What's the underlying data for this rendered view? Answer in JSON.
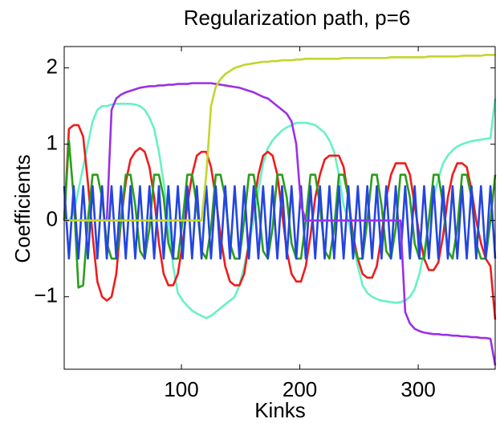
{
  "chart_data": {
    "type": "line",
    "title": "Regularization path, p=6",
    "x_label": "Kinks",
    "y_label": "Coefficients",
    "xlim": [
      1,
      365
    ],
    "xticks": [
      100,
      200,
      300
    ],
    "ylim": [
      -1.95,
      2.28
    ],
    "yticks": [
      {
        "value": -1,
        "label": "−1"
      },
      0,
      1,
      2
    ],
    "x": [
      1,
      5,
      9,
      13,
      17,
      21,
      25,
      29,
      33,
      37,
      41,
      45,
      49,
      53,
      57,
      61,
      65,
      69,
      73,
      77,
      81,
      85,
      89,
      93,
      97,
      101,
      105,
      109,
      113,
      117,
      121,
      125,
      129,
      133,
      137,
      141,
      145,
      149,
      153,
      157,
      161,
      165,
      169,
      173,
      177,
      181,
      185,
      189,
      193,
      197,
      201,
      205,
      209,
      213,
      217,
      221,
      225,
      229,
      233,
      237,
      241,
      245,
      249,
      253,
      257,
      261,
      265,
      269,
      273,
      277,
      281,
      285,
      289,
      293,
      297,
      301,
      305,
      309,
      313,
      317,
      321,
      325,
      329,
      333,
      337,
      341,
      345,
      349,
      353,
      357,
      361,
      365
    ],
    "series": [
      {
        "color": "#66f2c4",
        "values": [
          0,
          0,
          0.1,
          0.4,
          0.7,
          1.0,
          1.3,
          1.45,
          1.5,
          1.5,
          1.52,
          1.53,
          1.53,
          1.53,
          1.53,
          1.52,
          1.5,
          1.45,
          1.35,
          1.2,
          0.9,
          0.5,
          0,
          -0.6,
          -0.95,
          -1.05,
          -1.12,
          -1.18,
          -1.22,
          -1.25,
          -1.28,
          -1.25,
          -1.2,
          -1.15,
          -1.1,
          -1.05,
          -1.0,
          -0.85,
          -0.6,
          -0.3,
          0,
          0.4,
          0.75,
          0.95,
          1.05,
          1.12,
          1.18,
          1.22,
          1.25,
          1.28,
          1.28,
          1.28,
          1.27,
          1.25,
          1.2,
          1.15,
          1.05,
          0.9,
          0.6,
          0.2,
          0,
          -0.3,
          -0.6,
          -0.85,
          -0.95,
          -1.0,
          -1.03,
          -1.05,
          -1.06,
          -1.07,
          -1.08,
          -1.07,
          -1.05,
          -1.0,
          -0.9,
          -0.7,
          -0.4,
          0,
          0.3,
          0.55,
          0.75,
          0.85,
          0.92,
          0.97,
          1.0,
          1.02,
          1.04,
          1.05,
          1.06,
          1.07,
          1.08,
          1.6
        ]
      },
      {
        "color": "#ee1c1c",
        "values": [
          0,
          1.2,
          1.25,
          1.25,
          1.1,
          0.5,
          -0.2,
          -0.8,
          -1.0,
          -1.05,
          -1.0,
          -0.7,
          0,
          0.5,
          0.8,
          0.9,
          0.95,
          0.9,
          0.7,
          0.3,
          -0.3,
          -0.7,
          -0.85,
          -0.85,
          -0.7,
          -0.3,
          0.2,
          0.6,
          0.85,
          0.9,
          0.9,
          0.7,
          0.3,
          -0.2,
          -0.6,
          -0.8,
          -0.85,
          -0.85,
          -0.7,
          -0.3,
          0.2,
          0.6,
          0.85,
          0.9,
          0.85,
          0.6,
          0.1,
          -0.4,
          -0.7,
          -0.8,
          -0.8,
          -0.6,
          -0.2,
          0.3,
          0.6,
          0.8,
          0.85,
          0.85,
          0.85,
          0.7,
          0.3,
          -0.2,
          -0.5,
          -0.7,
          -0.75,
          -0.75,
          -0.6,
          -0.2,
          0.3,
          0.6,
          0.75,
          0.75,
          0.75,
          0.6,
          0.2,
          -0.2,
          -0.5,
          -0.65,
          -0.65,
          -0.55,
          -0.2,
          0.3,
          0.6,
          0.75,
          0.75,
          0.7,
          0.4,
          0,
          -0.3,
          -0.5,
          -0.6,
          -1.3
        ]
      },
      {
        "color": "#2a9e1a",
        "values": [
          0,
          1.05,
          0.3,
          -0.88,
          -0.85,
          0,
          0.6,
          0.6,
          0.3,
          -0.3,
          -0.5,
          -0.5,
          0,
          0.6,
          0.6,
          0.2,
          -0.4,
          -0.5,
          -0.1,
          0.6,
          0.6,
          0.3,
          -0.3,
          -0.5,
          -0.5,
          0,
          0.6,
          0.6,
          0.2,
          -0.4,
          -0.5,
          -0.1,
          0.6,
          0.6,
          0.3,
          -0.3,
          -0.5,
          -0.5,
          0,
          0.6,
          0.6,
          0.2,
          -0.4,
          -0.5,
          -0.1,
          0.6,
          0.6,
          0.3,
          -0.3,
          -0.5,
          -0.5,
          0,
          0.6,
          0.6,
          0.2,
          -0.4,
          -0.5,
          -0.1,
          0.6,
          0.6,
          0.3,
          -0.3,
          -0.5,
          -0.5,
          0,
          0.6,
          0.6,
          0.2,
          -0.4,
          -0.5,
          -0.1,
          0.6,
          0.6,
          0.3,
          -0.3,
          -0.5,
          -0.5,
          0,
          0.6,
          0.6,
          0.2,
          -0.4,
          -0.5,
          -0.1,
          0.6,
          0.6,
          0.3,
          -0.3,
          -0.5,
          -0.5,
          0,
          0.6
        ]
      },
      {
        "color": "#2445e0",
        "values": [
          0.45,
          -0.5,
          0.45,
          -0.5,
          0.45,
          -0.5,
          0.45,
          -0.5,
          0.45,
          -0.5,
          0.45,
          -0.5,
          0.45,
          -0.5,
          0.45,
          -0.5,
          0.45,
          -0.5,
          0.45,
          -0.5,
          0.45,
          -0.5,
          0.45,
          -0.5,
          0.45,
          -0.5,
          0.45,
          -0.5,
          0.45,
          -0.5,
          0.45,
          -0.5,
          0.45,
          -0.5,
          0.45,
          -0.5,
          0.45,
          -0.5,
          0.45,
          -0.5,
          0.45,
          -0.5,
          0.45,
          -0.5,
          0.45,
          -0.5,
          0.45,
          -0.5,
          0.45,
          -0.5,
          0.45,
          -0.5,
          0.45,
          -0.5,
          0.45,
          -0.5,
          0.45,
          -0.5,
          0.45,
          -0.5,
          0.45,
          -0.5,
          0.45,
          -0.5,
          0.45,
          -0.5,
          0.45,
          -0.5,
          0.45,
          -0.5,
          0.45,
          -0.5,
          0.45,
          -0.5,
          0.45,
          -0.5,
          0.45,
          -0.5,
          0.45,
          -0.5,
          0.45,
          -0.5,
          0.45,
          -0.5,
          0.45,
          -0.5,
          0.45,
          -0.5,
          0.45,
          -0.5,
          0.45,
          -0.5
        ]
      },
      {
        "color": "#9b30e6",
        "values": [
          0,
          0,
          0,
          0,
          0,
          0,
          0,
          0,
          0,
          0,
          1.45,
          1.6,
          1.65,
          1.68,
          1.7,
          1.72,
          1.74,
          1.75,
          1.76,
          1.76,
          1.77,
          1.77,
          1.78,
          1.78,
          1.79,
          1.79,
          1.79,
          1.8,
          1.8,
          1.8,
          1.8,
          1.8,
          1.79,
          1.78,
          1.77,
          1.76,
          1.75,
          1.74,
          1.72,
          1.7,
          1.68,
          1.65,
          1.62,
          1.6,
          1.55,
          1.5,
          1.45,
          1.4,
          1.3,
          1.0,
          0.2,
          0,
          0,
          0,
          0,
          0,
          0,
          0,
          0,
          0,
          0,
          0,
          0,
          0,
          0,
          0,
          0,
          0,
          0,
          0,
          0,
          0,
          -1.2,
          -1.35,
          -1.42,
          -1.45,
          -1.47,
          -1.48,
          -1.49,
          -1.49,
          -1.5,
          -1.5,
          -1.51,
          -1.51,
          -1.52,
          -1.52,
          -1.53,
          -1.53,
          -1.54,
          -1.54,
          -1.55,
          -1.9
        ]
      },
      {
        "color": "#c2d62a",
        "values": [
          0,
          0,
          0,
          0,
          0,
          0,
          0,
          0,
          0,
          0,
          0,
          0,
          0,
          0,
          0,
          0,
          0,
          0,
          0,
          0,
          0,
          0,
          0,
          0,
          0,
          0,
          0,
          0,
          0,
          0,
          0.6,
          1.5,
          1.75,
          1.85,
          1.92,
          1.96,
          2.0,
          2.02,
          2.04,
          2.05,
          2.06,
          2.07,
          2.08,
          2.08,
          2.09,
          2.09,
          2.1,
          2.1,
          2.1,
          2.11,
          2.11,
          2.12,
          2.12,
          2.12,
          2.12,
          2.12,
          2.12,
          2.12,
          2.12,
          2.13,
          2.13,
          2.13,
          2.13,
          2.13,
          2.13,
          2.13,
          2.13,
          2.13,
          2.13,
          2.14,
          2.14,
          2.14,
          2.14,
          2.14,
          2.14,
          2.14,
          2.14,
          2.15,
          2.15,
          2.15,
          2.15,
          2.15,
          2.15,
          2.15,
          2.16,
          2.16,
          2.16,
          2.16,
          2.16,
          2.17,
          2.17,
          2.17
        ]
      }
    ]
  }
}
